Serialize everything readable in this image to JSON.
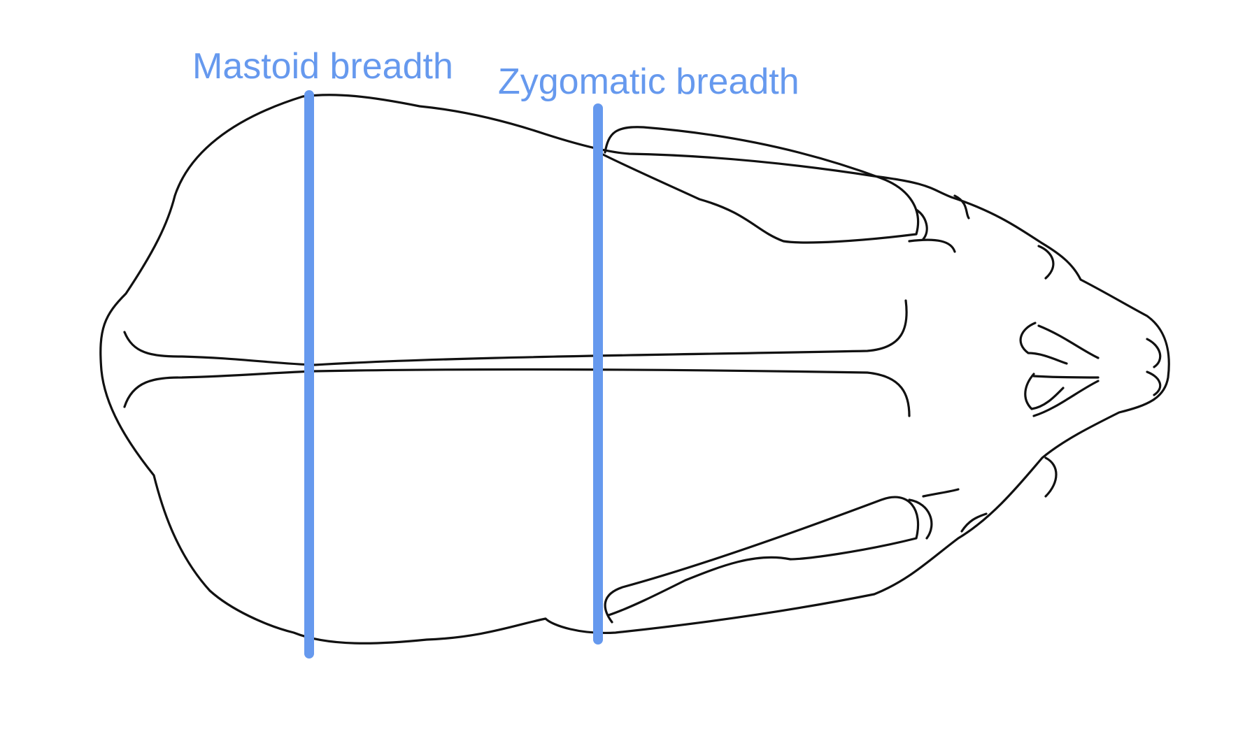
{
  "diagram": {
    "labels": {
      "mastoid": "Mastoid breadth",
      "zygomatic": "Zygomatic breadth"
    },
    "colors": {
      "measure": "#6699ee",
      "outline": "#111111",
      "background": "#ffffff"
    }
  }
}
